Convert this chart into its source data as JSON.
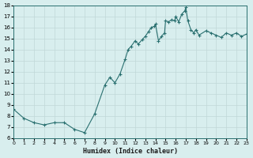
{
  "xlabel": "Humidex (Indice chaleur)",
  "ylabel": "",
  "bg_color": "#d8eeee",
  "grid_color": "#c0d8d8",
  "line_color": "#2a7070",
  "marker_color": "#2a7070",
  "xlim": [
    0,
    23
  ],
  "ylim": [
    6,
    18
  ],
  "xticks": [
    0,
    1,
    2,
    3,
    4,
    5,
    6,
    7,
    8,
    9,
    10,
    11,
    12,
    13,
    14,
    15,
    16,
    17,
    18,
    19,
    20,
    21,
    22,
    23
  ],
  "yticks": [
    6,
    7,
    8,
    9,
    10,
    11,
    12,
    13,
    14,
    15,
    16,
    17,
    18
  ],
  "x": [
    0,
    1,
    2,
    3,
    4,
    5,
    6,
    7,
    8,
    9,
    9.5,
    10,
    10.5,
    11,
    11.3,
    11.6,
    12,
    12.3,
    12.7,
    13,
    13.3,
    13.6,
    13.9,
    14,
    14.3,
    14.6,
    14.9,
    15,
    15.3,
    15.6,
    15.9,
    16,
    16.3,
    16.6,
    16.9,
    17,
    17.2,
    17.5,
    17.8,
    18,
    18.3,
    19,
    19.5,
    20,
    20.5,
    21,
    21.5,
    22,
    22.5,
    23
  ],
  "y": [
    8.6,
    7.8,
    7.4,
    7.2,
    7.4,
    7.4,
    6.8,
    6.5,
    8.2,
    10.8,
    11.5,
    11.0,
    11.8,
    13.1,
    14.0,
    14.3,
    14.8,
    14.5,
    14.9,
    15.2,
    15.6,
    16.0,
    16.1,
    16.3,
    14.8,
    15.2,
    15.5,
    16.6,
    16.5,
    16.7,
    16.6,
    17.0,
    16.5,
    17.2,
    17.5,
    17.8,
    16.6,
    15.8,
    15.5,
    15.8,
    15.3,
    15.7,
    15.5,
    15.3,
    15.1,
    15.5,
    15.3,
    15.5,
    15.2,
    15.4
  ]
}
